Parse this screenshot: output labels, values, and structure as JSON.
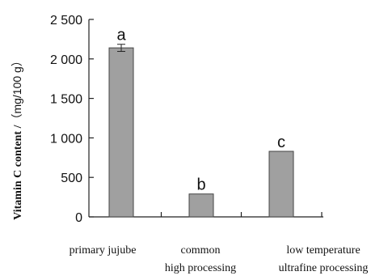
{
  "chart_data": {
    "type": "bar",
    "categories": [
      [
        "primary jujube"
      ],
      [
        "common",
        "high processing"
      ],
      [
        "low temperature",
        "ultrafine processing"
      ]
    ],
    "values": [
      2140,
      290,
      830
    ],
    "error_bars": [
      45,
      null,
      null
    ],
    "significance_letters": [
      "a",
      "b",
      "c"
    ],
    "ylabel": "Vitamin C content / （mg/100 g）",
    "ylabel_parts": {
      "main": "Vitamin C content /",
      "unit": "（mg/100 g）"
    },
    "yticks": [
      0,
      500,
      1000,
      1500,
      2000,
      2500
    ],
    "ytick_labels": [
      "0",
      "500",
      "1 000",
      "1 500",
      "2 000",
      "2 500"
    ],
    "ylim": [
      0,
      2500
    ],
    "grid": false,
    "legend": "none",
    "colors": {
      "bar_fill": "#a0a0a0",
      "bar_stroke": "#444444",
      "axis": "#222222"
    }
  }
}
